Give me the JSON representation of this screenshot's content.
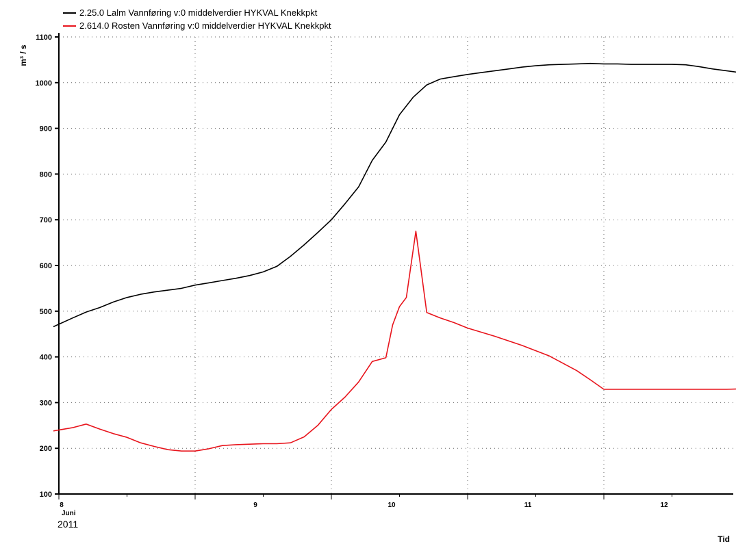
{
  "chart_data": {
    "type": "line",
    "ylabel": "m³ / s",
    "xlabel": "Tid",
    "xlim": [
      0,
      6.0
    ],
    "ylim": [
      100,
      1100
    ],
    "yticks": [
      100,
      200,
      300,
      400,
      500,
      600,
      700,
      800,
      900,
      1000,
      1100
    ],
    "xticks": [
      {
        "pos": 0,
        "label": "8",
        "sublabel": "Juni",
        "year": "2011"
      },
      {
        "pos": 1,
        "label": "9"
      },
      {
        "pos": 2,
        "label": "10"
      },
      {
        "pos": 3,
        "label": "11"
      },
      {
        "pos": 4,
        "label": "12"
      }
    ],
    "grid": true,
    "legend_position": "top-left",
    "series": [
      {
        "name": "2.25.0 Lalm Vannføring v:0 middelverdier HYKVAL Knekkpkt",
        "color": "#000000",
        "x": [
          -0.04,
          0.1,
          0.2,
          0.3,
          0.4,
          0.5,
          0.6,
          0.7,
          0.8,
          0.9,
          1.0,
          1.1,
          1.2,
          1.3,
          1.4,
          1.5,
          1.6,
          1.7,
          1.8,
          1.9,
          2.0,
          2.1,
          2.2,
          2.3,
          2.4,
          2.5,
          2.6,
          2.7,
          2.8,
          2.9,
          3.0,
          3.1,
          3.2,
          3.3,
          3.4,
          3.5,
          3.6,
          3.7,
          3.8,
          3.9,
          4.0,
          4.1,
          4.2,
          4.3,
          4.4,
          4.5,
          4.6,
          4.7,
          4.8,
          4.9,
          5.0,
          5.2,
          5.4,
          5.56
        ],
        "values": [
          466,
          485,
          498,
          508,
          520,
          530,
          537,
          542,
          546,
          550,
          557,
          562,
          567,
          572,
          578,
          586,
          598,
          620,
          645,
          672,
          700,
          735,
          772,
          830,
          870,
          930,
          968,
          995,
          1008,
          1013,
          1018,
          1022,
          1026,
          1030,
          1034,
          1037,
          1039,
          1040,
          1041,
          1042,
          1041,
          1041,
          1040,
          1040,
          1040,
          1040,
          1039,
          1035,
          1030,
          1026,
          1022,
          1017,
          1006,
          995
        ]
      },
      {
        "name": "2.614.0 Rosten Vannføring v:0 middelverdier HYKVAL Knekkpkt",
        "color": "#e8141c",
        "x": [
          -0.04,
          0.1,
          0.2,
          0.3,
          0.4,
          0.5,
          0.6,
          0.7,
          0.8,
          0.9,
          1.0,
          1.1,
          1.2,
          1.3,
          1.4,
          1.5,
          1.6,
          1.7,
          1.8,
          1.9,
          2.0,
          2.1,
          2.2,
          2.3,
          2.4,
          2.45,
          2.5,
          2.55,
          2.62,
          2.7,
          2.8,
          2.9,
          3.0,
          3.2,
          3.4,
          3.6,
          3.8,
          3.9,
          4.0,
          4.2,
          4.4,
          4.6,
          4.7,
          4.8,
          4.9,
          5.0,
          5.2,
          5.4,
          5.56
        ],
        "values": [
          238,
          245,
          253,
          242,
          232,
          224,
          212,
          204,
          197,
          194,
          194,
          199,
          206,
          208,
          209,
          210,
          210,
          212,
          225,
          250,
          285,
          312,
          345,
          390,
          398,
          470,
          510,
          530,
          675,
          497,
          485,
          475,
          463,
          445,
          425,
          402,
          370,
          350,
          329,
          329,
          329,
          329,
          329,
          329,
          329,
          330,
          325,
          314,
          305
        ]
      }
    ]
  }
}
